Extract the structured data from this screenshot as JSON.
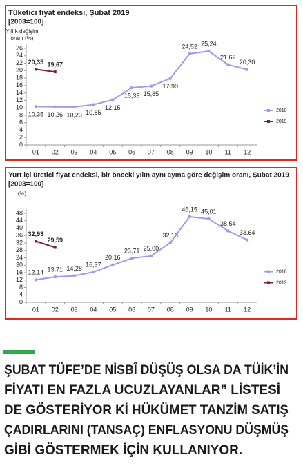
{
  "chart_data": [
    {
      "type": "line",
      "title": "Tüketici fiyat endeksi, Şubat 2019",
      "subtitle": "[2003=100]",
      "y_label": [
        "Yıllık değişim",
        "oranı (%)"
      ],
      "categories": [
        "01",
        "02",
        "03",
        "04",
        "05",
        "06",
        "07",
        "08",
        "09",
        "10",
        "11",
        "12"
      ],
      "series": [
        {
          "name": "2018",
          "color": "#9d9bea",
          "values": [
            10.35,
            10.26,
            10.23,
            10.85,
            12.15,
            15.39,
            15.85,
            17.9,
            24.52,
            25.24,
            21.62,
            20.3
          ],
          "value_labels": [
            "10,35",
            "10,26",
            "10,23",
            "10,85",
            "12,15",
            "15,39",
            "15,85",
            "17,90",
            "24,52",
            "25,24",
            "21,62",
            "20,30"
          ]
        },
        {
          "name": "2019",
          "color": "#7a1e3c",
          "values": [
            20.35,
            19.67,
            null,
            null,
            null,
            null,
            null,
            null,
            null,
            null,
            null,
            null
          ],
          "value_labels": [
            "20,35",
            "19,67",
            null,
            null,
            null,
            null,
            null,
            null,
            null,
            null,
            null,
            null
          ]
        }
      ],
      "ylim": [
        0,
        26
      ],
      "yticks": [
        0,
        2,
        4,
        6,
        8,
        10,
        12,
        14,
        16,
        18,
        20,
        22,
        24,
        26
      ],
      "grid": false,
      "legend": "right"
    },
    {
      "type": "line",
      "title": "Yurt içi üretici fiyat endeksi, bir önceki yılın aynı ayına göre değişim oranı, Şubat  2019",
      "subtitle": "[2003=100]",
      "y_label": [
        "(%)"
      ],
      "categories": [
        "01",
        "02",
        "03",
        "04",
        "05",
        "06",
        "07",
        "08",
        "09",
        "10",
        "11",
        "12"
      ],
      "series": [
        {
          "name": "2018",
          "color": "#9d9bea",
          "values": [
            12.14,
            13.71,
            14.28,
            16.37,
            20.16,
            23.71,
            25.0,
            32.13,
            46.15,
            45.01,
            38.54,
            33.64
          ],
          "value_labels": [
            "12,14",
            "13,71",
            "14,28",
            "16,37",
            "20,16",
            "23,71",
            "25,00",
            "32,13",
            "46,15",
            "45,01",
            "38,54",
            "33,64"
          ]
        },
        {
          "name": "2019",
          "color": "#7a1e3c",
          "values": [
            32.93,
            29.59,
            null,
            null,
            null,
            null,
            null,
            null,
            null,
            null,
            null,
            null
          ],
          "value_labels": [
            "32,93",
            "29,59",
            null,
            null,
            null,
            null,
            null,
            null,
            null,
            null,
            null,
            null
          ]
        }
      ],
      "ylim": [
        0,
        48
      ],
      "yticks": [
        0,
        4,
        8,
        12,
        16,
        20,
        24,
        28,
        32,
        36,
        40,
        44,
        48
      ],
      "grid": false,
      "legend": "right"
    }
  ],
  "caption": [
    "ŞUBAT TÜFE’DE NİSBÎ DÜŞÜŞ OLSA DA TÜİK’İN",
    "FİYATI EN FAZLA UCUZLAYANLAR” LİSTESİ",
    "DE GÖSTERİYOR Kİ HÜKÜMET TANZİM SATIŞ",
    "ÇADIRLARINI (TANSAÇ) ENFLASYONU DÜŞMÜŞ",
    "GİBİ GÖSTERMEK İÇİN KULLANIYOR."
  ]
}
